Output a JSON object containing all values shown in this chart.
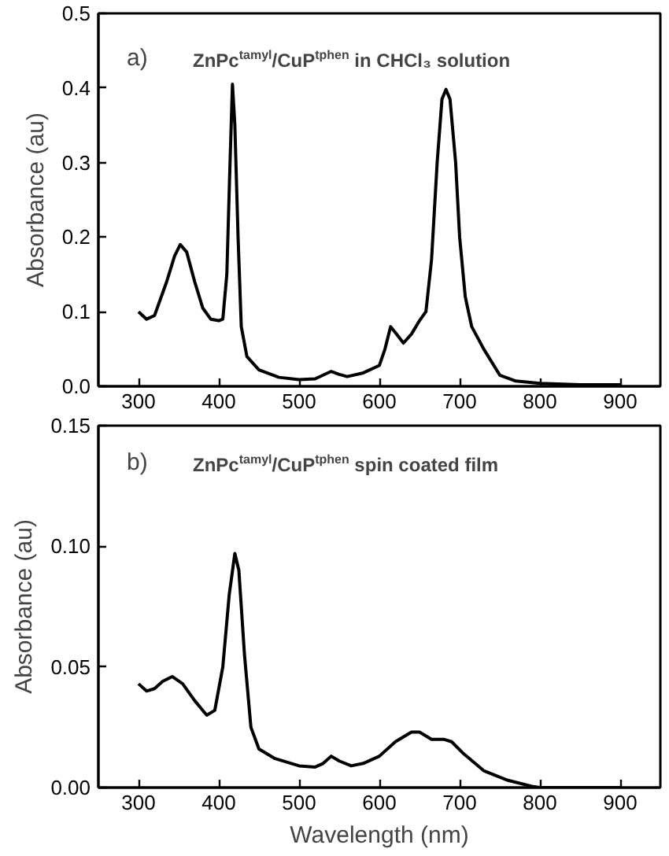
{
  "chart_data": [
    {
      "type": "line",
      "ylabel": "Absorbance (au)",
      "annotations": [
        "a)",
        "ZnPc$^{tamyl}$/CuP$^{tphen}$ in CHCl₃ solution"
      ],
      "xlim": [
        250,
        950
      ],
      "xticks": [
        300,
        400,
        500,
        600,
        700,
        800,
        900
      ],
      "ylim": [
        0,
        0.5
      ],
      "yticks": [
        {
          "value": 0,
          "label": "0.0"
        },
        0.1,
        0.2,
        0.3,
        0.4,
        0.5
      ],
      "grid": false,
      "marker": "none",
      "line_style": "solid",
      "series": [
        {
          "color": "#000000",
          "x": [
            300,
            310,
            320,
            335,
            345,
            352,
            360,
            370,
            380,
            390,
            400,
            405,
            410,
            414,
            417,
            420,
            424,
            428,
            435,
            450,
            475,
            500,
            520,
            530,
            540,
            550,
            560,
            580,
            600,
            607,
            614,
            620,
            630,
            640,
            650,
            658,
            665,
            672,
            678,
            683,
            688,
            695,
            700,
            707,
            715,
            730,
            750,
            770,
            800,
            850,
            900
          ],
          "values": [
            0.1,
            0.09,
            0.095,
            0.14,
            0.175,
            0.19,
            0.18,
            0.14,
            0.105,
            0.09,
            0.088,
            0.09,
            0.15,
            0.3,
            0.405,
            0.35,
            0.2,
            0.08,
            0.04,
            0.022,
            0.012,
            0.009,
            0.01,
            0.015,
            0.02,
            0.016,
            0.013,
            0.018,
            0.028,
            0.05,
            0.08,
            0.072,
            0.058,
            0.07,
            0.088,
            0.1,
            0.17,
            0.3,
            0.385,
            0.398,
            0.385,
            0.3,
            0.2,
            0.12,
            0.08,
            0.05,
            0.015,
            0.007,
            0.004,
            0.002,
            0.002
          ]
        }
      ]
    },
    {
      "type": "line",
      "xlabel": "Wavelength (nm)",
      "ylabel": "Absorbance (au)",
      "annotations": [
        "b)",
        "ZnPc$^{tamyl}$/CuP$^{tphen}$ spin coated film"
      ],
      "xlim": [
        250,
        950
      ],
      "xticks": [
        300,
        400,
        500,
        600,
        700,
        800,
        900
      ],
      "ylim": [
        0,
        0.15
      ],
      "yticks": [
        {
          "value": 0,
          "label": "0.00"
        },
        {
          "value": 0.05,
          "label": "0.05"
        },
        {
          "value": 0.1,
          "label": "0.10"
        },
        {
          "value": 0.15,
          "label": "0.15"
        }
      ],
      "grid": false,
      "marker": "none",
      "line_style": "solid",
      "series": [
        {
          "color": "#000000",
          "x": [
            300,
            310,
            320,
            330,
            342,
            355,
            370,
            385,
            395,
            405,
            413,
            420,
            425,
            432,
            440,
            450,
            470,
            500,
            520,
            530,
            540,
            550,
            565,
            580,
            600,
            620,
            640,
            650,
            665,
            680,
            690,
            705,
            730,
            760,
            790,
            800,
            850,
            900
          ],
          "values": [
            0.043,
            0.04,
            0.041,
            0.044,
            0.046,
            0.043,
            0.036,
            0.03,
            0.032,
            0.05,
            0.08,
            0.097,
            0.09,
            0.055,
            0.025,
            0.016,
            0.012,
            0.009,
            0.0085,
            0.01,
            0.013,
            0.011,
            0.009,
            0.01,
            0.013,
            0.019,
            0.023,
            0.023,
            0.02,
            0.02,
            0.019,
            0.014,
            0.007,
            0.003,
            0.0005,
            0,
            0,
            0
          ]
        }
      ]
    }
  ]
}
